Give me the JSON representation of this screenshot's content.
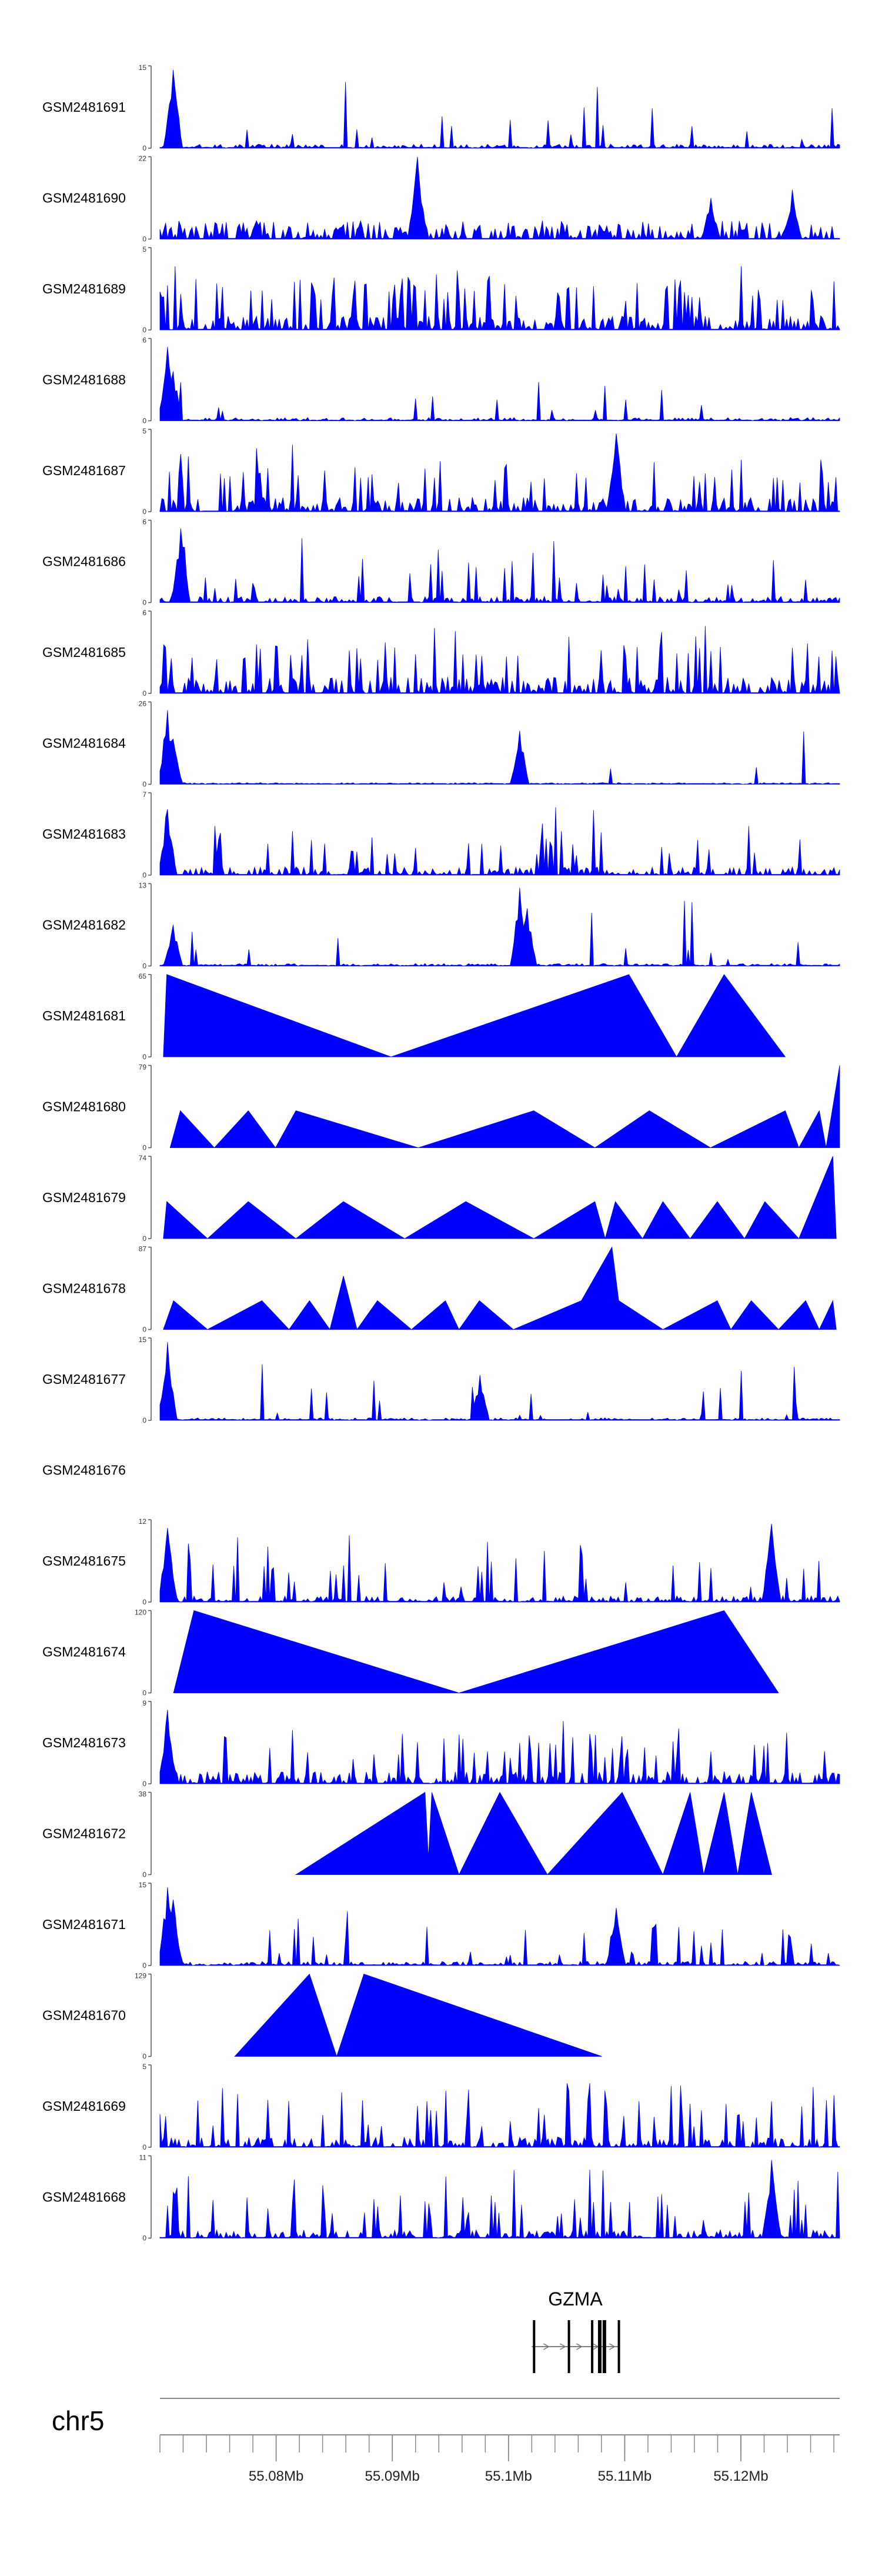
{
  "chart_data": {
    "type": "area",
    "color": "#0000ff",
    "tracks": [
      {
        "sample": "GSM2481691",
        "ymax": "15",
        "ymin": "0",
        "style": "noise",
        "seed": 11,
        "base": 0.1,
        "peakPct": 0.25,
        "peaks": [
          [
            0.02,
            0.95
          ]
        ]
      },
      {
        "sample": "GSM2481690",
        "ymax": "22",
        "ymin": "0",
        "style": "tri",
        "seed": 12,
        "base": 0.45,
        "peaks": [
          [
            0.38,
            1.0
          ],
          [
            0.93,
            0.6
          ],
          [
            0.81,
            0.5
          ]
        ]
      },
      {
        "sample": "GSM2481689",
        "ymax": "5",
        "ymin": "0",
        "style": "noise",
        "seed": 13,
        "base": 0.35,
        "peakPct": 0.7,
        "peaks": []
      },
      {
        "sample": "GSM2481688",
        "ymax": "6",
        "ymin": "0",
        "style": "noise",
        "seed": 14,
        "base": 0.08,
        "peakPct": 0.2,
        "peaks": [
          [
            0.01,
            0.9
          ],
          [
            0.02,
            0.6
          ]
        ]
      },
      {
        "sample": "GSM2481687",
        "ymax": "5",
        "ymin": "0",
        "style": "noise",
        "seed": 15,
        "base": 0.35,
        "peakPct": 0.6,
        "peaks": [
          [
            0.67,
            0.95
          ]
        ]
      },
      {
        "sample": "GSM2481686",
        "ymax": "6",
        "ymin": "0",
        "style": "noise",
        "seed": 16,
        "base": 0.15,
        "peakPct": 0.35,
        "peaks": [
          [
            0.03,
            0.9
          ]
        ]
      },
      {
        "sample": "GSM2481685",
        "ymax": "6",
        "ymin": "0",
        "style": "noise",
        "seed": 17,
        "base": 0.4,
        "peakPct": 0.65,
        "peaks": []
      },
      {
        "sample": "GSM2481684",
        "ymax": "26",
        "ymin": "0",
        "style": "noise",
        "seed": 18,
        "base": 0.04,
        "peakPct": 0.08,
        "peaks": [
          [
            0.01,
            0.9
          ],
          [
            0.02,
            0.55
          ],
          [
            0.53,
            0.65
          ]
        ]
      },
      {
        "sample": "GSM2481683",
        "ymax": "7",
        "ymin": "0",
        "style": "noise",
        "seed": 19,
        "base": 0.2,
        "peakPct": 0.45,
        "peaks": [
          [
            0.01,
            0.8
          ]
        ]
      },
      {
        "sample": "GSM2481682",
        "ymax": "13",
        "ymin": "0",
        "style": "noise",
        "seed": 20,
        "base": 0.06,
        "peakPct": 0.2,
        "peaks": [
          [
            0.53,
            0.95
          ],
          [
            0.54,
            0.7
          ],
          [
            0.02,
            0.5
          ]
        ]
      },
      {
        "sample": "GSM2481681",
        "ymax": "65",
        "ymin": "0",
        "style": "poly",
        "seed": 21,
        "pts": [
          [
            0.005,
            0
          ],
          [
            0.01,
            1
          ],
          [
            0.34,
            0
          ],
          [
            0.69,
            1
          ],
          [
            0.76,
            0
          ],
          [
            0.83,
            1
          ],
          [
            0.92,
            0
          ]
        ]
      },
      {
        "sample": "GSM2481680",
        "ymax": "79",
        "ymin": "0",
        "style": "poly",
        "seed": 22,
        "pts": [
          [
            0.015,
            0
          ],
          [
            0.03,
            0.45
          ],
          [
            0.08,
            0
          ],
          [
            0.13,
            0.45
          ],
          [
            0.17,
            0
          ],
          [
            0.2,
            0.45
          ],
          [
            0.38,
            0
          ],
          [
            0.55,
            0.45
          ],
          [
            0.64,
            0
          ],
          [
            0.72,
            0.45
          ],
          [
            0.81,
            0
          ],
          [
            0.92,
            0.45
          ],
          [
            0.94,
            0
          ],
          [
            0.97,
            0.45
          ],
          [
            0.98,
            0
          ],
          [
            1.0,
            1.0
          ]
        ]
      },
      {
        "sample": "GSM2481679",
        "ymax": "74",
        "ymin": "0",
        "style": "poly",
        "seed": 23,
        "pts": [
          [
            0.005,
            0
          ],
          [
            0.01,
            0.45
          ],
          [
            0.07,
            0
          ],
          [
            0.13,
            0.45
          ],
          [
            0.2,
            0
          ],
          [
            0.27,
            0.45
          ],
          [
            0.36,
            0
          ],
          [
            0.45,
            0.45
          ],
          [
            0.55,
            0
          ],
          [
            0.64,
            0.45
          ],
          [
            0.655,
            0
          ],
          [
            0.67,
            0.45
          ],
          [
            0.71,
            0
          ],
          [
            0.74,
            0.45
          ],
          [
            0.78,
            0
          ],
          [
            0.82,
            0.45
          ],
          [
            0.86,
            0
          ],
          [
            0.89,
            0.45
          ],
          [
            0.94,
            0
          ],
          [
            0.99,
            1.0
          ],
          [
            0.995,
            0
          ]
        ]
      },
      {
        "sample": "GSM2481678",
        "ymax": "87",
        "ymin": "0",
        "style": "poly",
        "seed": 24,
        "pts": [
          [
            0.005,
            0
          ],
          [
            0.02,
            0.35
          ],
          [
            0.07,
            0
          ],
          [
            0.15,
            0.35
          ],
          [
            0.19,
            0
          ],
          [
            0.22,
            0.35
          ],
          [
            0.25,
            0
          ],
          [
            0.27,
            0.65
          ],
          [
            0.29,
            0
          ],
          [
            0.32,
            0.35
          ],
          [
            0.37,
            0
          ],
          [
            0.42,
            0.35
          ],
          [
            0.44,
            0
          ],
          [
            0.47,
            0.35
          ],
          [
            0.52,
            0
          ],
          [
            0.62,
            0.35
          ],
          [
            0.665,
            1.0
          ],
          [
            0.675,
            0.35
          ],
          [
            0.74,
            0
          ],
          [
            0.82,
            0.35
          ],
          [
            0.84,
            0
          ],
          [
            0.87,
            0.35
          ],
          [
            0.91,
            0
          ],
          [
            0.95,
            0.35
          ],
          [
            0.97,
            0
          ],
          [
            0.99,
            0.35
          ],
          [
            0.995,
            0
          ]
        ]
      },
      {
        "sample": "GSM2481677",
        "ymax": "15",
        "ymin": "0",
        "style": "noise",
        "seed": 25,
        "base": 0.06,
        "peakPct": 0.2,
        "peaks": [
          [
            0.01,
            0.95
          ],
          [
            0.47,
            0.55
          ]
        ]
      },
      {
        "sample": "GSM2481676",
        "ymax": "",
        "ymin": "",
        "style": "empty",
        "seed": 26
      },
      {
        "sample": "GSM2481675",
        "ymax": "12",
        "ymin": "0",
        "style": "noise",
        "seed": 27,
        "base": 0.15,
        "peakPct": 0.4,
        "peaks": [
          [
            0.01,
            0.9
          ],
          [
            0.9,
            0.95
          ]
        ]
      },
      {
        "sample": "GSM2481674",
        "ymax": "120",
        "ymin": "0",
        "style": "poly",
        "seed": 28,
        "pts": [
          [
            0.02,
            0
          ],
          [
            0.05,
            1
          ],
          [
            0.44,
            0
          ],
          [
            0.83,
            1
          ],
          [
            0.91,
            0
          ]
        ]
      },
      {
        "sample": "GSM2481673",
        "ymax": "9",
        "ymin": "0",
        "style": "noise",
        "seed": 29,
        "base": 0.3,
        "peakPct": 0.6,
        "peaks": [
          [
            0.01,
            0.9
          ]
        ]
      },
      {
        "sample": "GSM2481672",
        "ymax": "38",
        "ymin": "0",
        "style": "poly",
        "seed": 30,
        "pts": [
          [
            0.2,
            0
          ],
          [
            0.39,
            1
          ],
          [
            0.395,
            0.2
          ],
          [
            0.4,
            1
          ],
          [
            0.44,
            0
          ],
          [
            0.5,
            1
          ],
          [
            0.57,
            0
          ],
          [
            0.68,
            1
          ],
          [
            0.74,
            0
          ],
          [
            0.78,
            1
          ],
          [
            0.8,
            0
          ],
          [
            0.83,
            1
          ],
          [
            0.85,
            0
          ],
          [
            0.87,
            1
          ],
          [
            0.9,
            0
          ]
        ]
      },
      {
        "sample": "GSM2481671",
        "ymax": "15",
        "ymin": "0",
        "style": "noise",
        "seed": 31,
        "base": 0.1,
        "peakPct": 0.35,
        "peaks": [
          [
            0.01,
            0.95
          ],
          [
            0.02,
            0.8
          ],
          [
            0.67,
            0.7
          ]
        ]
      },
      {
        "sample": "GSM2481670",
        "ymax": "129",
        "ymin": "0",
        "style": "poly",
        "seed": 32,
        "pts": [
          [
            0.11,
            0
          ],
          [
            0.22,
            1
          ],
          [
            0.26,
            0
          ],
          [
            0.3,
            1
          ],
          [
            0.65,
            0
          ]
        ]
      },
      {
        "sample": "GSM2481669",
        "ymax": "5",
        "ymin": "0",
        "style": "noise",
        "seed": 33,
        "base": 0.25,
        "peakPct": 0.55,
        "peaks": []
      },
      {
        "sample": "GSM2481668",
        "ymax": "11",
        "ymin": "0",
        "style": "noise",
        "seed": 34,
        "base": 0.2,
        "peakPct": 0.5,
        "peaks": [
          [
            0.9,
            0.95
          ]
        ]
      }
    ],
    "gene": {
      "name": "GZMA",
      "start_mb": 55.102,
      "end_mb": 55.1095,
      "exons_mb": [
        55.1022,
        55.1052,
        55.1072,
        55.1078,
        55.1082,
        55.1095
      ]
    },
    "chromosome": "chr5",
    "x_range_mb": [
      55.07,
      55.1285
    ],
    "ticks": [
      {
        "label": "55.08Mb",
        "value": 55.08
      },
      {
        "label": "55.09Mb",
        "value": 55.09
      },
      {
        "label": "55.1Mb",
        "value": 55.1
      },
      {
        "label": "55.11Mb",
        "value": 55.11
      },
      {
        "label": "55.12Mb",
        "value": 55.12
      }
    ]
  }
}
